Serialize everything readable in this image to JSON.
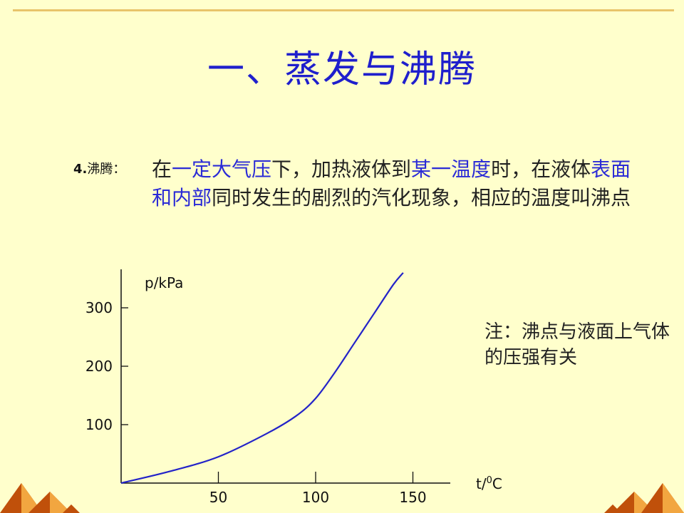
{
  "slide": {
    "title": "一、蒸发与沸腾",
    "definition": {
      "label_number": "4.",
      "label_text": "沸腾：",
      "segments": [
        {
          "text": "在",
          "highlight": false
        },
        {
          "text": "一定大气压",
          "highlight": true
        },
        {
          "text": "下，加热液体到",
          "highlight": false
        },
        {
          "text": "某一温度",
          "highlight": true
        },
        {
          "text": "时，在液体",
          "highlight": false
        },
        {
          "text": "表面和内部",
          "highlight": true
        },
        {
          "text": "同时发生的剧烈的汽化现象，相应的温度叫沸点",
          "highlight": false
        }
      ]
    },
    "note": "注：沸点与液面上气体的压强有关"
  },
  "colors": {
    "background": "#FFFFCC",
    "title": "#1F1FCC",
    "highlight": "#2B2BD6",
    "curve": "#2323C8",
    "accent_rule": "#E8C46A",
    "corner_dark": "#C0500A",
    "corner_light": "#F2A640"
  },
  "chart_data": {
    "type": "line",
    "ylabel": "p/kPa",
    "xlabel_base": "t/",
    "xlabel_sup": "0",
    "xlabel_unit": "C",
    "x_ticks": [
      50,
      100,
      150
    ],
    "y_ticks": [
      100,
      200,
      300
    ],
    "xlim": [
      0,
      185
    ],
    "ylim": [
      0,
      360
    ],
    "series": [
      {
        "x": [
          0,
          25,
          50,
          75,
          90,
          100,
          110,
          120,
          130,
          140,
          145
        ],
        "y": [
          0,
          20,
          45,
          85,
          115,
          145,
          190,
          240,
          290,
          340,
          360
        ]
      }
    ]
  }
}
